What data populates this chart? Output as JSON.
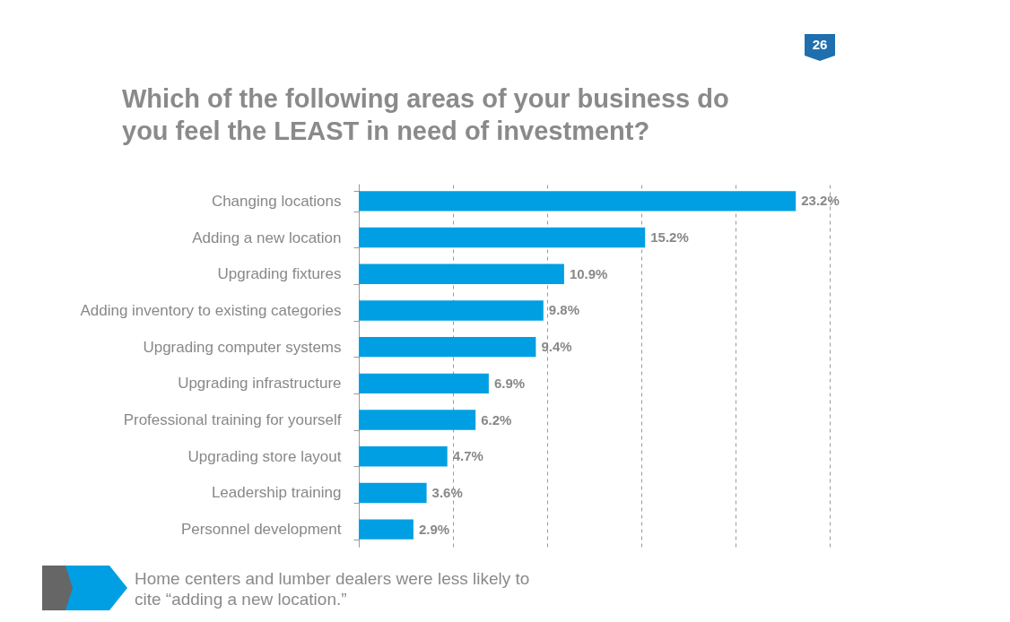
{
  "chart_data": {
    "type": "bar",
    "orientation": "horizontal",
    "title": "Which of the following areas of your business do you feel the LEAST in need of investment?",
    "categories": [
      "Changing locations",
      "Adding a new location",
      "Upgrading fixtures",
      "Adding inventory to existing categories",
      "Upgrading computer systems",
      "Upgrading infrastructure",
      "Professional training for yourself",
      "Upgrading store layout",
      "Leadership training",
      "Personnel development"
    ],
    "values": [
      23.2,
      15.2,
      10.9,
      9.8,
      9.4,
      6.9,
      6.2,
      4.7,
      3.6,
      2.9
    ],
    "value_labels": [
      "23.2%",
      "15.2%",
      "10.9%",
      "9.8%",
      "9.4%",
      "6.9%",
      "6.2%",
      "4.7%",
      "3.6%",
      "2.9%"
    ],
    "color": "#009fe3",
    "xlim": [
      0,
      25
    ],
    "xticks": [
      {
        "value": 0,
        "label": null
      },
      {
        "value": 5,
        "label": null
      },
      {
        "value": 10,
        "label": null
      },
      {
        "value": 15,
        "label": null
      },
      {
        "value": 20,
        "label": null
      },
      {
        "value": 25,
        "label": null
      }
    ],
    "tick_labels": "y",
    "grid": "x",
    "annotations": [
      "26",
      "Home centers and lumber dealers were less likely to cite “adding a new location.”"
    ]
  }
}
